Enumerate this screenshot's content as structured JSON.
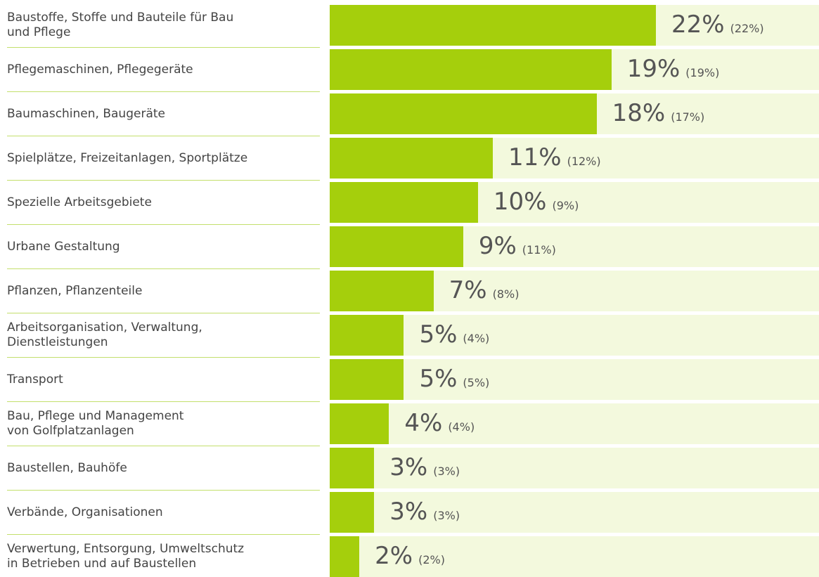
{
  "chart_data": {
    "type": "bar",
    "orientation": "horizontal",
    "categories": [
      "Baustoffe, Stoffe und Bauteile für Bau\nund Pflege",
      "Pflegemaschinen, Pflegegeräte",
      "Baumaschinen, Baugeräte",
      "Spielplätze, Freizeitanlagen, Sportplätze",
      "Spezielle Arbeitsgebiete",
      "Urbane Gestaltung",
      "Pflanzen, Pflanzenteile",
      "Arbeitsorganisation, Verwaltung,\nDienstleistungen",
      "Transport",
      "Bau, Pflege und Management\nvon Golfplatzanlagen",
      "Baustellen, Bauhöfe",
      "Verbände, Organisationen",
      "Verwertung, Entsorgung, Umweltschutz\nin Betrieben und auf Baustellen"
    ],
    "values": [
      22,
      19,
      18,
      11,
      10,
      9,
      7,
      5,
      5,
      4,
      3,
      3,
      2
    ],
    "value_labels": [
      "22%",
      "19%",
      "18%",
      "11%",
      "10%",
      "9%",
      "7%",
      "5%",
      "5%",
      "4%",
      "3%",
      "3%",
      "2%"
    ],
    "previous_value_labels": [
      "(22%)",
      "(19%)",
      "(17%)",
      "(12%)",
      "(9%)",
      "(11%)",
      "(8%)",
      "(4%)",
      "(5%)",
      "(4%)",
      "(3%)",
      "(3%)",
      "(2%)"
    ],
    "color": "#a5cf0c",
    "background_color": "#f3f9dd",
    "xlim": [
      0,
      33
    ]
  }
}
